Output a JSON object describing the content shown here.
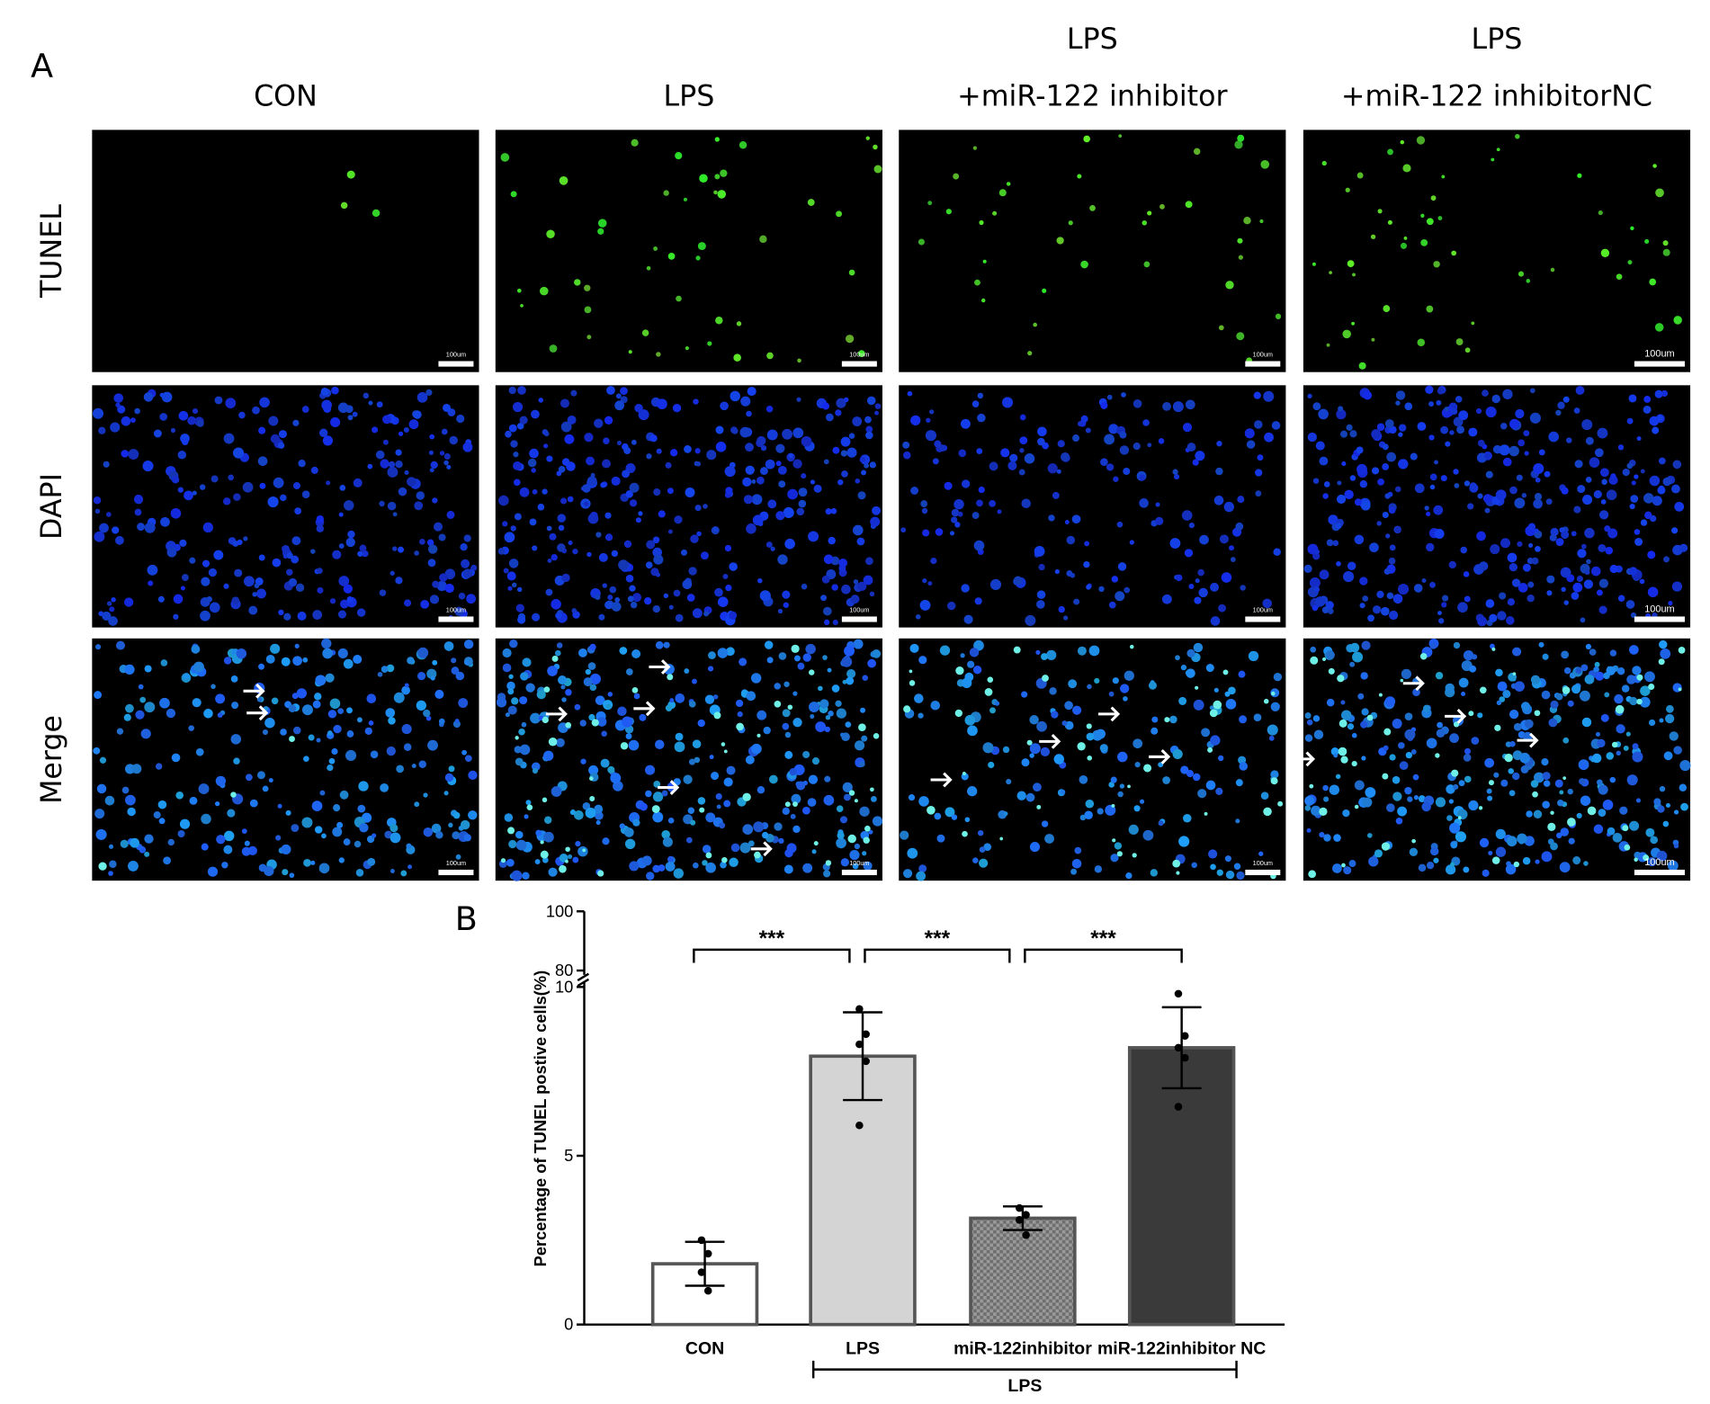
{
  "figure": {
    "panel_a": {
      "letter": "A",
      "columns": [
        {
          "lines": [
            "CON"
          ]
        },
        {
          "lines": [
            "LPS"
          ]
        },
        {
          "lines": [
            "LPS",
            "+miR-122 inhibitor"
          ]
        },
        {
          "lines": [
            "LPS",
            "+miR-122 inhibitorNC"
          ]
        }
      ],
      "rows": [
        "TUNEL",
        "DAPI",
        "Merge"
      ],
      "scale_bar": "100um"
    },
    "panel_b": {
      "letter": "B"
    }
  },
  "chart_data": {
    "type": "bar",
    "y_label": "Percentage of TUNEL postive cells(%)",
    "categories": [
      "CON",
      "LPS",
      "miR-122inhibitor",
      "miR-122inhibitor NC"
    ],
    "values": [
      1.8,
      7.95,
      3.15,
      8.2
    ],
    "errors": [
      0.65,
      1.3,
      0.35,
      1.2
    ],
    "points": [
      [
        2.5,
        2.1,
        1.55,
        1.0
      ],
      [
        9.35,
        8.6,
        8.3,
        7.8,
        5.9
      ],
      [
        3.45,
        3.25,
        3.1,
        2.65
      ],
      [
        9.8,
        8.55,
        8.2,
        7.9,
        6.45
      ]
    ],
    "colors": [
      "#ffffff",
      "#d4d4d4",
      "#8c8c8c",
      "#3a3a3a"
    ],
    "patterns": [
      null,
      null,
      "checker",
      null
    ],
    "ylim": [
      0,
      10
    ],
    "yticks": [
      0,
      5,
      10
    ],
    "upper_ylim": [
      80,
      100
    ],
    "upper_yticks": [
      80,
      100
    ],
    "comparisons": [
      {
        "pair": [
          "CON",
          "LPS"
        ],
        "label": "***"
      },
      {
        "pair": [
          "LPS",
          "miR-122inhibitor"
        ],
        "label": "***"
      },
      {
        "pair": [
          "miR-122inhibitor",
          "miR-122inhibitor NC"
        ],
        "label": "***"
      }
    ],
    "group": {
      "label": "LPS",
      "from": "LPS",
      "to": "miR-122inhibitor NC"
    }
  }
}
